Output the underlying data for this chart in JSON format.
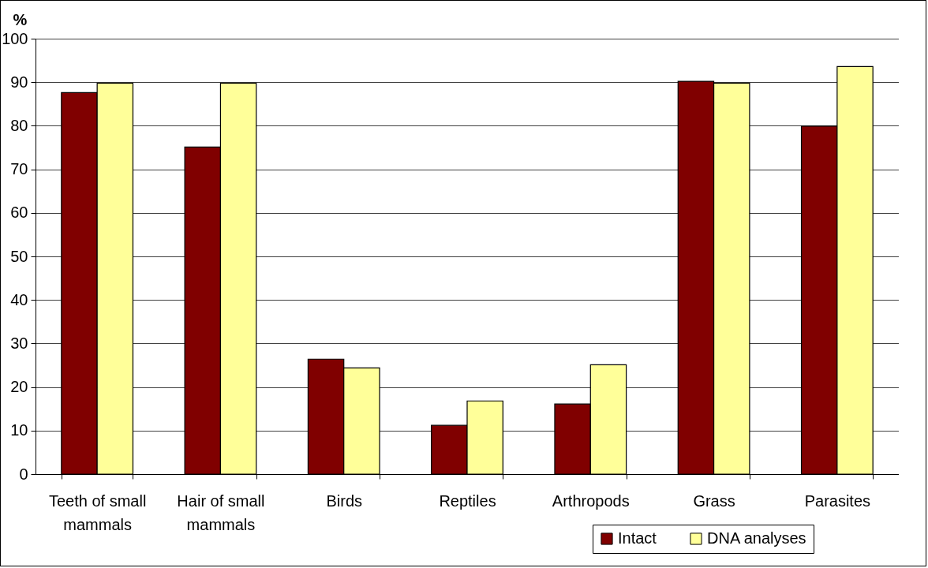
{
  "chart_data": {
    "type": "bar",
    "ylabel": "%",
    "categories": [
      "Teeth of small mammals",
      "Hair of small mammals",
      "Birds",
      "Reptiles",
      "Arthropods",
      "Grass",
      "Parasites"
    ],
    "series": [
      {
        "name": "Intact",
        "color": "#800000",
        "values": [
          87.6,
          75.1,
          26.4,
          11.2,
          16.1,
          90.2,
          79.9
        ]
      },
      {
        "name": "DNA analyses",
        "color": "#ffff99",
        "values": [
          89.8,
          89.8,
          24.4,
          16.8,
          25.1,
          89.8,
          93.6
        ]
      }
    ],
    "ylim": [
      0,
      100
    ],
    "yticks": [
      0,
      10,
      20,
      30,
      40,
      50,
      60,
      70,
      80,
      90,
      100
    ],
    "grid": "y",
    "legend": "bottom right"
  }
}
